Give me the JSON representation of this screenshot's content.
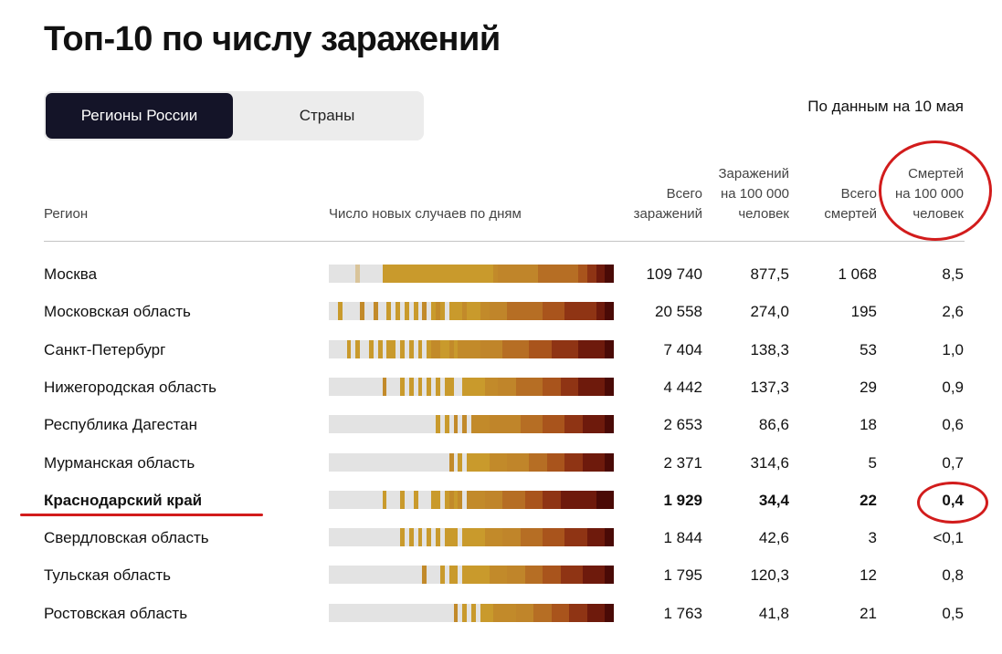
{
  "title": "Топ-10 по числу заражений",
  "tabs": [
    {
      "label": "Регионы России",
      "active": true
    },
    {
      "label": "Страны",
      "active": false
    }
  ],
  "as_of": "По данным на 10 мая",
  "headers": {
    "region": "Регион",
    "chart": "Число новых случаев по дням",
    "total_cases": [
      "Всего",
      "заражений"
    ],
    "cases_per_100k": [
      "Заражений",
      "на 100 000",
      "человек"
    ],
    "total_deaths": [
      "Всего",
      "смертей"
    ],
    "deaths_per_100k": [
      "Смертей",
      "на 100 000",
      "человек"
    ]
  },
  "colors": {
    "accent_dark": "#141428",
    "annotation": "#d21c1c",
    "heat_empty": "#e3e3e3",
    "heat_low": "#c89a2a",
    "heat_mid": "#b8762a",
    "heat_high": "#8a2a12",
    "heat_max": "#4a0a06"
  },
  "rows": [
    {
      "region": "Москва",
      "total_cases": "109 740",
      "cases_per_100k": "877,5",
      "total_deaths": "1 068",
      "deaths_per_100k": "8,5",
      "highlight": false
    },
    {
      "region": "Московская область",
      "total_cases": "20 558",
      "cases_per_100k": "274,0",
      "total_deaths": "195",
      "deaths_per_100k": "2,6",
      "highlight": false
    },
    {
      "region": "Санкт-Петербург",
      "total_cases": "7 404",
      "cases_per_100k": "138,3",
      "total_deaths": "53",
      "deaths_per_100k": "1,0",
      "highlight": false
    },
    {
      "region": "Нижегородская область",
      "total_cases": "4 442",
      "cases_per_100k": "137,3",
      "total_deaths": "29",
      "deaths_per_100k": "0,9",
      "highlight": false
    },
    {
      "region": "Республика Дагестан",
      "total_cases": "2 653",
      "cases_per_100k": "86,6",
      "total_deaths": "18",
      "deaths_per_100k": "0,6",
      "highlight": false
    },
    {
      "region": "Мурманская область",
      "total_cases": "2 371",
      "cases_per_100k": "314,6",
      "total_deaths": "5",
      "deaths_per_100k": "0,7",
      "highlight": false
    },
    {
      "region": "Краснодарский край",
      "total_cases": "1 929",
      "cases_per_100k": "34,4",
      "total_deaths": "22",
      "deaths_per_100k": "0,4",
      "highlight": true
    },
    {
      "region": "Свердловская область",
      "total_cases": "1 844",
      "cases_per_100k": "42,6",
      "total_deaths": "3",
      "deaths_per_100k": "<0,1",
      "highlight": false
    },
    {
      "region": "Тульская область",
      "total_cases": "1 795",
      "cases_per_100k": "120,3",
      "total_deaths": "12",
      "deaths_per_100k": "0,8",
      "highlight": false
    },
    {
      "region": "Ростовская область",
      "total_cases": "1 763",
      "cases_per_100k": "41,8",
      "total_deaths": "21",
      "deaths_per_100k": "0,5",
      "highlight": false
    }
  ],
  "heatmap_levels": [
    "0000001000002222222222222222222222222344444444455555555566778899",
    "0020000300300202020203023202223222334444555555556666677777778899",
    "0000202002020220202020233223233333444445555556666677777788888899",
    "0000000000003000202020202022002222233344445555556666777788888899",
    "0000000000000000000000002020303033334444444555556666677778888899",
    "0000000000000000000000000003020222223333444445555666677778888899",
    "0000000000002000200200022023230333344445555566667777888888889999",
    "0000000000000000202020202022202222233334444555556666677777888899",
    "0000000000000000000003000202202222223333444455556666777778888899",
    "0000000000000000000000000000302020222333334444555566667777888899"
  ],
  "heat_palette": [
    "#e3e3e3",
    "#d9c49a",
    "#c99a2c",
    "#c28a2a",
    "#c0852a",
    "#b66e24",
    "#a9541c",
    "#8f3414",
    "#6e1a0c",
    "#4a0a06"
  ]
}
